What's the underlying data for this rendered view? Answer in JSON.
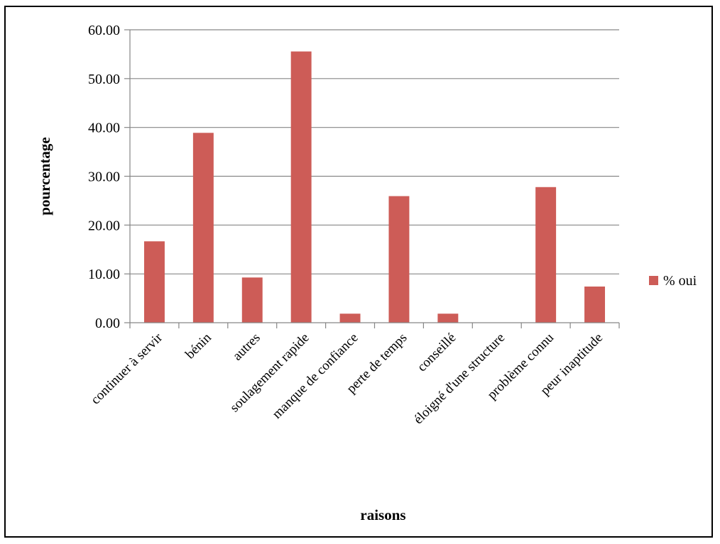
{
  "chart_data": {
    "type": "bar",
    "title": "",
    "xlabel": "raisons",
    "ylabel": "pourcentage",
    "ylim": [
      0,
      60
    ],
    "ytick_step": 10,
    "ytick_format_decimals": 2,
    "grid": true,
    "legend_position": "right",
    "categories": [
      "continuer à servir",
      "bénin",
      "autres",
      "soulagement rapide",
      "manque de confiance",
      "perte de temps",
      "conseillé",
      "éloigné d'une structure",
      "problème connu",
      "peur inaptitude"
    ],
    "series": [
      {
        "name": "% oui",
        "color": "#cd5c57",
        "values": [
          16.67,
          38.89,
          9.26,
          55.56,
          1.85,
          25.93,
          1.85,
          0.0,
          27.78,
          7.41
        ]
      }
    ]
  }
}
